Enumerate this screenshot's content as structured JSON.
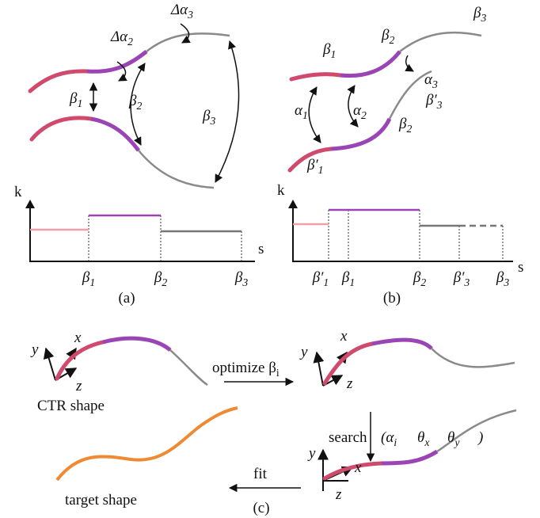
{
  "panel_a": {
    "annotations": [
      {
        "base": "Δα",
        "sub": "2"
      },
      {
        "base": "Δα",
        "sub": "3"
      },
      {
        "base": "β",
        "sub": "1"
      },
      {
        "base": "β",
        "sub": "2"
      },
      {
        "base": "β",
        "sub": "3"
      }
    ],
    "plot": {
      "y_label": "k",
      "x_label": "s",
      "ticks": [
        {
          "base": "β",
          "sub": "1"
        },
        {
          "base": "β",
          "sub": "2"
        },
        {
          "base": "β",
          "sub": "3"
        }
      ]
    },
    "caption": "(a)"
  },
  "panel_b": {
    "annotations": [
      {
        "base": "β",
        "sub": "1"
      },
      {
        "base": "β",
        "sub": "2"
      },
      {
        "base": "β",
        "sub": "3"
      },
      {
        "base": "α",
        "sub": "3"
      },
      {
        "base": "β′",
        "sub": "3"
      },
      {
        "base": "α",
        "sub": "1"
      },
      {
        "base": "α",
        "sub": "2"
      },
      {
        "base": "β",
        "sub": "2"
      },
      {
        "base": "β′",
        "sub": "1"
      }
    ],
    "plot": {
      "y_label": "k",
      "x_label": "s",
      "ticks": [
        {
          "base": "β′",
          "sub": "1"
        },
        {
          "base": "β",
          "sub": "1"
        },
        {
          "base": "β",
          "sub": "2"
        },
        {
          "base": "β′",
          "sub": "3"
        },
        {
          "base": "β",
          "sub": "3"
        }
      ]
    },
    "caption": "(b)"
  },
  "panel_c": {
    "frame_1": {
      "y": "y",
      "x": "x",
      "z": "z"
    },
    "frame_2": {
      "y": "y",
      "x": "x",
      "z": "z"
    },
    "frame_3": {
      "y": "y",
      "x": "x",
      "z": "z"
    },
    "optimize": {
      "base": "optimize β",
      "sub": "i"
    },
    "ctr_shape": "CTR shape",
    "search": "search",
    "search_params": [
      {
        "base": "(α",
        "sub": "i"
      },
      {
        "base": "θ",
        "sub": "x"
      },
      {
        "base": "θ",
        "sub": "y"
      },
      ")"
    ],
    "fit": "fit",
    "target_shape": "target shape",
    "caption": "(c)"
  }
}
